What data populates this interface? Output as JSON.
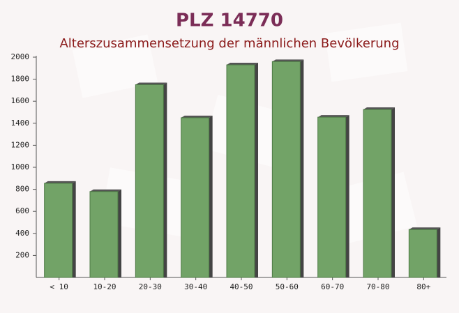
{
  "chart_data": {
    "type": "bar",
    "title": "PLZ 14770",
    "subtitle": "Alterszusammensetzung der männlichen Bevölkerung",
    "categories": [
      "< 10",
      "10-20",
      "20-30",
      "30-40",
      "40-50",
      "50-60",
      "60-70",
      "70-80",
      "80+"
    ],
    "values": [
      855,
      780,
      1750,
      1450,
      1930,
      1960,
      1455,
      1525,
      435
    ],
    "color": "#6a9e5f",
    "ylim": [
      0,
      2000
    ],
    "yticks": [
      200,
      400,
      600,
      800,
      1000,
      1200,
      1400,
      1600,
      1800,
      2000
    ]
  }
}
